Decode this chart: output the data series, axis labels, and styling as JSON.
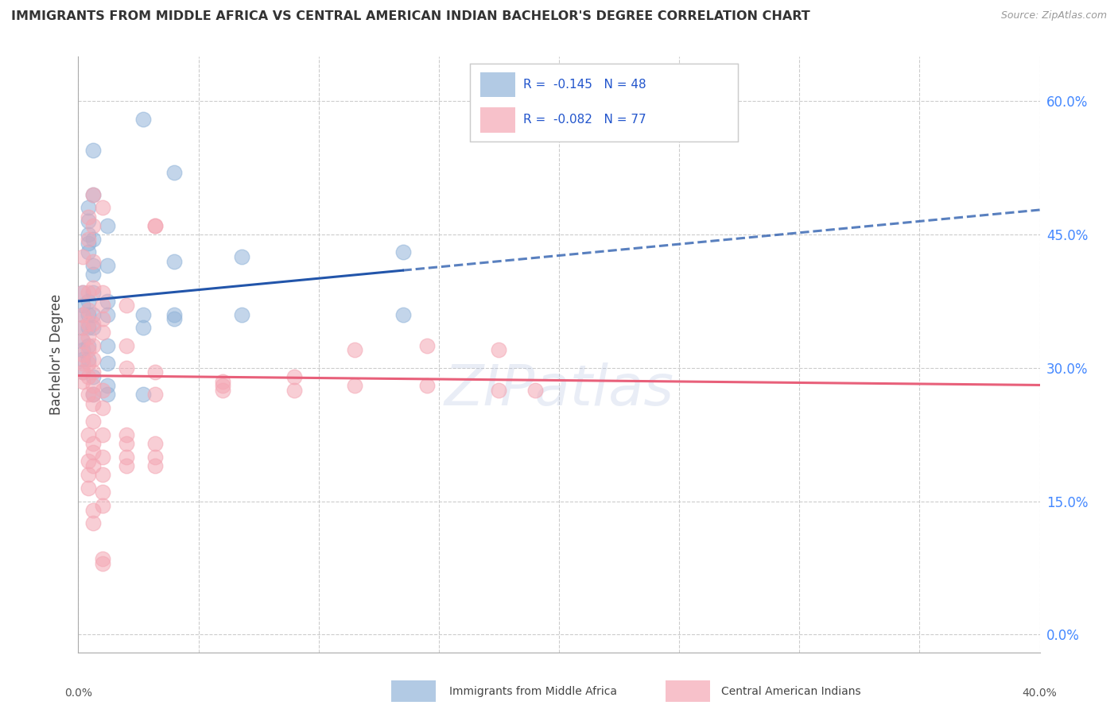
{
  "title": "IMMIGRANTS FROM MIDDLE AFRICA VS CENTRAL AMERICAN INDIAN BACHELOR'S DEGREE CORRELATION CHART",
  "source": "Source: ZipAtlas.com",
  "ylabel": "Bachelor's Degree",
  "ytick_labels": [
    "0.0%",
    "15.0%",
    "30.0%",
    "45.0%",
    "60.0%"
  ],
  "ytick_values": [
    0.0,
    0.15,
    0.3,
    0.45,
    0.6
  ],
  "xlim": [
    0.0,
    0.4
  ],
  "ylim": [
    -0.02,
    0.65
  ],
  "blue_color": "#92B4D9",
  "pink_color": "#F4A7B4",
  "blue_line_color": "#2255AA",
  "pink_line_color": "#E8607A",
  "blue_scatter": [
    [
      0.002,
      0.385
    ],
    [
      0.002,
      0.37
    ],
    [
      0.002,
      0.36
    ],
    [
      0.002,
      0.345
    ],
    [
      0.002,
      0.33
    ],
    [
      0.002,
      0.32
    ],
    [
      0.002,
      0.31
    ],
    [
      0.002,
      0.295
    ],
    [
      0.004,
      0.48
    ],
    [
      0.004,
      0.465
    ],
    [
      0.004,
      0.45
    ],
    [
      0.004,
      0.44
    ],
    [
      0.004,
      0.43
    ],
    [
      0.004,
      0.375
    ],
    [
      0.004,
      0.36
    ],
    [
      0.004,
      0.345
    ],
    [
      0.004,
      0.325
    ],
    [
      0.004,
      0.31
    ],
    [
      0.006,
      0.545
    ],
    [
      0.006,
      0.495
    ],
    [
      0.006,
      0.445
    ],
    [
      0.006,
      0.415
    ],
    [
      0.006,
      0.405
    ],
    [
      0.006,
      0.385
    ],
    [
      0.006,
      0.36
    ],
    [
      0.006,
      0.345
    ],
    [
      0.006,
      0.29
    ],
    [
      0.006,
      0.27
    ],
    [
      0.012,
      0.46
    ],
    [
      0.012,
      0.415
    ],
    [
      0.012,
      0.375
    ],
    [
      0.012,
      0.36
    ],
    [
      0.012,
      0.325
    ],
    [
      0.012,
      0.305
    ],
    [
      0.012,
      0.28
    ],
    [
      0.012,
      0.27
    ],
    [
      0.027,
      0.58
    ],
    [
      0.027,
      0.36
    ],
    [
      0.027,
      0.345
    ],
    [
      0.027,
      0.27
    ],
    [
      0.04,
      0.52
    ],
    [
      0.04,
      0.42
    ],
    [
      0.04,
      0.36
    ],
    [
      0.04,
      0.355
    ],
    [
      0.068,
      0.425
    ],
    [
      0.068,
      0.36
    ],
    [
      0.135,
      0.43
    ],
    [
      0.135,
      0.36
    ]
  ],
  "pink_scatter": [
    [
      0.002,
      0.425
    ],
    [
      0.002,
      0.385
    ],
    [
      0.002,
      0.36
    ],
    [
      0.002,
      0.345
    ],
    [
      0.002,
      0.33
    ],
    [
      0.002,
      0.315
    ],
    [
      0.002,
      0.305
    ],
    [
      0.002,
      0.295
    ],
    [
      0.002,
      0.285
    ],
    [
      0.004,
      0.47
    ],
    [
      0.004,
      0.445
    ],
    [
      0.004,
      0.385
    ],
    [
      0.004,
      0.365
    ],
    [
      0.004,
      0.35
    ],
    [
      0.004,
      0.335
    ],
    [
      0.004,
      0.32
    ],
    [
      0.004,
      0.305
    ],
    [
      0.004,
      0.29
    ],
    [
      0.004,
      0.27
    ],
    [
      0.004,
      0.225
    ],
    [
      0.004,
      0.195
    ],
    [
      0.004,
      0.18
    ],
    [
      0.004,
      0.165
    ],
    [
      0.006,
      0.495
    ],
    [
      0.006,
      0.46
    ],
    [
      0.006,
      0.42
    ],
    [
      0.006,
      0.39
    ],
    [
      0.006,
      0.35
    ],
    [
      0.006,
      0.325
    ],
    [
      0.006,
      0.31
    ],
    [
      0.006,
      0.295
    ],
    [
      0.006,
      0.28
    ],
    [
      0.006,
      0.27
    ],
    [
      0.006,
      0.26
    ],
    [
      0.006,
      0.24
    ],
    [
      0.006,
      0.215
    ],
    [
      0.006,
      0.205
    ],
    [
      0.006,
      0.19
    ],
    [
      0.006,
      0.14
    ],
    [
      0.006,
      0.125
    ],
    [
      0.01,
      0.48
    ],
    [
      0.01,
      0.385
    ],
    [
      0.01,
      0.37
    ],
    [
      0.01,
      0.355
    ],
    [
      0.01,
      0.34
    ],
    [
      0.01,
      0.275
    ],
    [
      0.01,
      0.255
    ],
    [
      0.01,
      0.225
    ],
    [
      0.01,
      0.2
    ],
    [
      0.01,
      0.18
    ],
    [
      0.01,
      0.16
    ],
    [
      0.01,
      0.145
    ],
    [
      0.01,
      0.085
    ],
    [
      0.01,
      0.08
    ],
    [
      0.02,
      0.37
    ],
    [
      0.02,
      0.325
    ],
    [
      0.02,
      0.3
    ],
    [
      0.02,
      0.225
    ],
    [
      0.02,
      0.215
    ],
    [
      0.02,
      0.2
    ],
    [
      0.02,
      0.19
    ],
    [
      0.032,
      0.46
    ],
    [
      0.032,
      0.46
    ],
    [
      0.032,
      0.295
    ],
    [
      0.032,
      0.27
    ],
    [
      0.032,
      0.215
    ],
    [
      0.032,
      0.2
    ],
    [
      0.032,
      0.19
    ],
    [
      0.06,
      0.285
    ],
    [
      0.06,
      0.28
    ],
    [
      0.06,
      0.275
    ],
    [
      0.09,
      0.29
    ],
    [
      0.09,
      0.275
    ],
    [
      0.115,
      0.32
    ],
    [
      0.115,
      0.28
    ],
    [
      0.145,
      0.325
    ],
    [
      0.145,
      0.28
    ],
    [
      0.175,
      0.32
    ],
    [
      0.175,
      0.275
    ],
    [
      0.19,
      0.275
    ]
  ]
}
